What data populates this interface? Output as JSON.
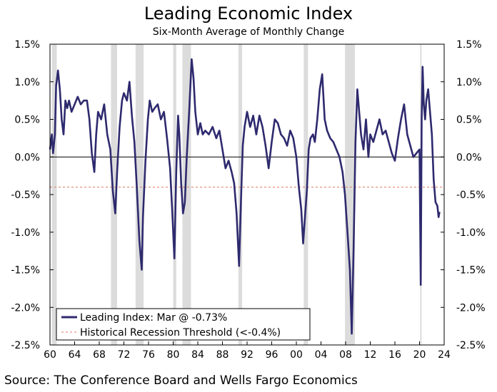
{
  "title": "Leading Economic Index",
  "subtitle": "Six-Month Average of Monthly Change",
  "source": "Source: The Conference Board and Wells Fargo Economics",
  "colors": {
    "line": "#2e2a6e",
    "threshold": "#e07a6a",
    "recession": "#dcdcdc",
    "zero": "#000000"
  },
  "chart_data": {
    "type": "line",
    "title": "Leading Economic Index",
    "subtitle": "Six-Month Average of Monthly Change",
    "xlabel": "",
    "ylabel": "",
    "xlim": [
      1960,
      2024
    ],
    "ylim": [
      -2.5,
      1.5
    ],
    "x_ticks": [
      1960,
      1964,
      1968,
      1972,
      1976,
      1980,
      1984,
      1988,
      1992,
      1996,
      2000,
      2004,
      2008,
      2012,
      2016,
      2020,
      2024
    ],
    "x_tick_labels": [
      "60",
      "64",
      "68",
      "72",
      "76",
      "80",
      "84",
      "88",
      "92",
      "96",
      "00",
      "04",
      "08",
      "12",
      "16",
      "20",
      "24"
    ],
    "y_ticks": [
      1.5,
      1.0,
      0.5,
      0.0,
      -0.5,
      -1.0,
      -1.5,
      -2.0,
      -2.5
    ],
    "y_tick_labels": [
      "1.5%",
      "1.0%",
      "0.5%",
      "0.0%",
      "-0.5%",
      "-1.0%",
      "-1.5%",
      "-2.0%",
      "-2.5%"
    ],
    "recessions": [
      [
        1960.3,
        1961.1
      ],
      [
        1969.9,
        1970.9
      ],
      [
        1973.9,
        1975.2
      ],
      [
        1980.0,
        1980.5
      ],
      [
        1981.5,
        1982.9
      ],
      [
        1990.6,
        1991.2
      ],
      [
        2001.2,
        2001.9
      ],
      [
        2007.9,
        2009.5
      ],
      [
        2020.1,
        2020.3
      ]
    ],
    "threshold": -0.4,
    "legend": {
      "placement": "bottom-left",
      "entries": [
        "Leading Index: Mar @ -0.73%",
        "Historical Recession Threshold (<-0.4%)"
      ]
    },
    "series": [
      {
        "name": "Leading Index: Mar @ -0.73%",
        "x": [
          1960.0,
          1960.3,
          1960.5,
          1960.8,
          1961.0,
          1961.3,
          1961.6,
          1961.9,
          1962.2,
          1962.5,
          1962.8,
          1963.1,
          1963.5,
          1964.0,
          1964.5,
          1965.0,
          1965.5,
          1966.0,
          1966.4,
          1966.8,
          1967.2,
          1967.5,
          1967.8,
          1968.3,
          1968.8,
          1969.3,
          1969.8,
          1970.2,
          1970.6,
          1970.9,
          1971.3,
          1971.7,
          1972.0,
          1972.5,
          1972.9,
          1973.3,
          1973.7,
          1974.1,
          1974.5,
          1974.9,
          1975.1,
          1975.5,
          1975.9,
          1976.2,
          1976.6,
          1977.0,
          1977.5,
          1978.0,
          1978.5,
          1979.0,
          1979.5,
          1979.9,
          1980.2,
          1980.5,
          1980.8,
          1981.0,
          1981.3,
          1981.6,
          1981.9,
          1982.2,
          1982.6,
          1983.0,
          1983.3,
          1983.6,
          1984.0,
          1984.4,
          1984.8,
          1985.2,
          1985.8,
          1986.4,
          1987.0,
          1987.5,
          1988.0,
          1988.5,
          1989.0,
          1989.5,
          1989.9,
          1990.3,
          1990.7,
          1991.0,
          1991.3,
          1991.6,
          1992.0,
          1992.5,
          1993.0,
          1993.5,
          1994.0,
          1994.5,
          1995.0,
          1995.5,
          1996.0,
          1996.5,
          1997.0,
          1997.5,
          1998.0,
          1998.5,
          1999.0,
          1999.5,
          2000.0,
          2000.4,
          2000.8,
          2001.1,
          2001.4,
          2001.7,
          2002.0,
          2002.3,
          2002.7,
          2003.0,
          2003.4,
          2003.8,
          2004.2,
          2004.6,
          2005.0,
          2005.5,
          2006.0,
          2006.5,
          2007.0,
          2007.5,
          2007.9,
          2008.3,
          2008.7,
          2009.0,
          2009.3,
          2009.6,
          2009.9,
          2010.2,
          2010.5,
          2010.9,
          2011.3,
          2011.7,
          2012.0,
          2012.5,
          2013.0,
          2013.5,
          2014.0,
          2014.5,
          2015.0,
          2015.5,
          2016.0,
          2016.5,
          2017.0,
          2017.5,
          2018.0,
          2018.5,
          2019.0,
          2019.5,
          2020.0,
          2020.2,
          2020.35,
          2020.5,
          2020.7,
          2020.9,
          2021.1,
          2021.4,
          2021.7,
          2022.0,
          2022.3,
          2022.6,
          2022.9,
          2023.1,
          2023.25
        ],
        "values": [
          0.1,
          0.3,
          0.05,
          0.3,
          0.95,
          1.15,
          0.9,
          0.5,
          0.3,
          0.75,
          0.65,
          0.75,
          0.6,
          0.7,
          0.8,
          0.7,
          0.75,
          0.75,
          0.5,
          0.05,
          -0.2,
          0.3,
          0.6,
          0.5,
          0.7,
          0.3,
          0.1,
          -0.45,
          -0.75,
          -0.2,
          0.4,
          0.75,
          0.85,
          0.75,
          1.0,
          0.55,
          0.2,
          -0.4,
          -1.1,
          -1.5,
          -0.8,
          -0.05,
          0.5,
          0.75,
          0.6,
          0.65,
          0.7,
          0.5,
          0.6,
          0.25,
          -0.15,
          -0.8,
          -1.35,
          -0.2,
          0.55,
          0.3,
          -0.35,
          -0.75,
          -0.6,
          0.0,
          0.6,
          1.3,
          1.05,
          0.6,
          0.3,
          0.45,
          0.3,
          0.35,
          0.3,
          0.4,
          0.25,
          0.35,
          0.1,
          -0.15,
          -0.05,
          -0.2,
          -0.35,
          -0.75,
          -1.45,
          -0.6,
          0.15,
          0.4,
          0.6,
          0.4,
          0.55,
          0.3,
          0.55,
          0.4,
          0.15,
          -0.15,
          0.2,
          0.5,
          0.45,
          0.3,
          0.25,
          0.15,
          0.35,
          0.25,
          0.0,
          -0.4,
          -0.7,
          -1.15,
          -0.8,
          -0.45,
          0.1,
          0.25,
          0.3,
          0.2,
          0.5,
          0.9,
          1.1,
          0.5,
          0.35,
          0.25,
          0.2,
          0.1,
          0.0,
          -0.2,
          -0.5,
          -1.0,
          -1.5,
          -2.35,
          -1.2,
          0.2,
          0.9,
          0.6,
          0.3,
          0.1,
          0.5,
          0.0,
          0.3,
          0.2,
          0.35,
          0.5,
          0.3,
          0.35,
          0.2,
          0.05,
          -0.05,
          0.25,
          0.5,
          0.7,
          0.3,
          0.15,
          0.0,
          0.05,
          0.1,
          -1.7,
          0.5,
          1.2,
          0.7,
          0.5,
          0.75,
          0.9,
          0.6,
          0.3,
          -0.3,
          -0.6,
          -0.65,
          -0.8,
          -0.73
        ]
      }
    ]
  }
}
